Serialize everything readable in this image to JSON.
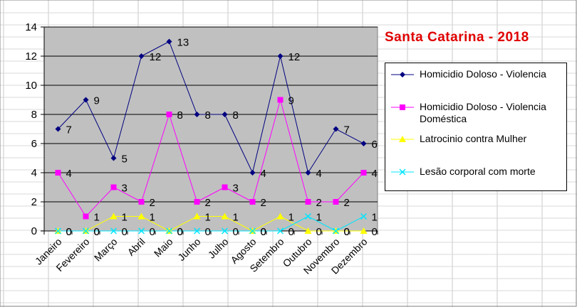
{
  "chart_data": {
    "type": "line",
    "title": "Santa Catarina - 2018",
    "categories": [
      "Janeiro",
      "Fevereiro",
      "Março",
      "Abril",
      "Maio",
      "Junho",
      "Julho",
      "Agosto",
      "Setembro",
      "Outubro",
      "Novembro",
      "Dezembro"
    ],
    "series": [
      {
        "name": "Homicidio Doloso - Violencia",
        "color": "#000080",
        "marker": "diamond",
        "values": [
          7,
          9,
          5,
          12,
          13,
          8,
          8,
          4,
          12,
          4,
          7,
          6
        ]
      },
      {
        "name": "Homicidio Doloso - Violencia Doméstica",
        "color": "#ff00ff",
        "marker": "square",
        "values": [
          4,
          1,
          3,
          2,
          8,
          2,
          3,
          2,
          9,
          2,
          2,
          4
        ]
      },
      {
        "name": "Latrocinio contra Mulher",
        "color": "#ffff00",
        "marker": "triangle",
        "values": [
          0,
          0,
          1,
          1,
          0,
          1,
          1,
          0,
          1,
          0,
          0,
          0
        ]
      },
      {
        "name": "Lesão corporal com morte",
        "color": "#00e5ff",
        "marker": "x",
        "values": [
          0,
          0,
          0,
          0,
          0,
          0,
          0,
          0,
          0,
          1,
          0,
          1
        ]
      }
    ],
    "yticks": [
      0,
      2,
      4,
      6,
      8,
      10,
      12,
      14
    ],
    "ylim": [
      0,
      14
    ],
    "grid": true,
    "plot_background": "#c0c0c0",
    "legend_position": "right"
  }
}
